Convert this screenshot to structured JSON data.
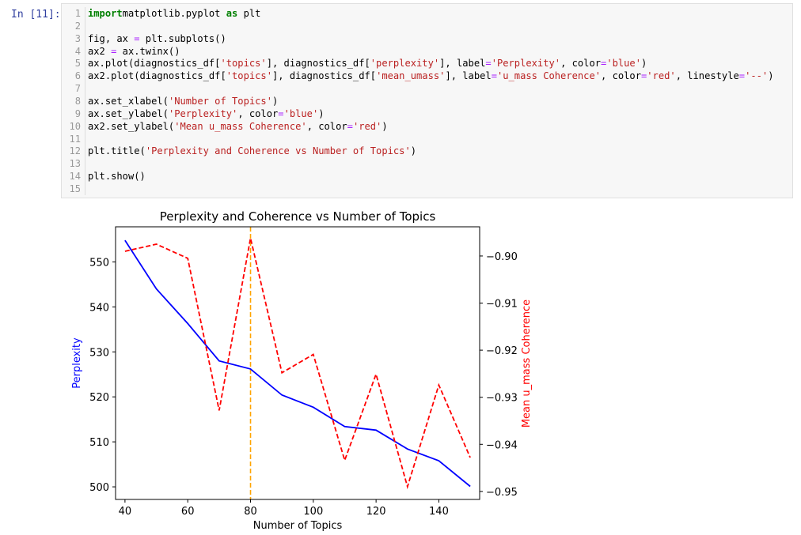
{
  "cell": {
    "prompt": "In [11]:",
    "lines": [
      {
        "n": "1",
        "t": [
          [
            "kw",
            "import"
          ],
          [
            "",
            "matplotlib.pyplot "
          ],
          [
            "kw",
            "as"
          ],
          [
            "",
            " plt"
          ]
        ]
      },
      {
        "n": "2",
        "t": []
      },
      {
        "n": "3",
        "t": [
          [
            "",
            "fig, ax "
          ],
          [
            "op",
            "="
          ],
          [
            "",
            " plt.subplots()"
          ]
        ]
      },
      {
        "n": "4",
        "t": [
          [
            "",
            "ax2 "
          ],
          [
            "op",
            "="
          ],
          [
            "",
            " ax.twinx()"
          ]
        ]
      },
      {
        "n": "5",
        "t": [
          [
            "",
            "ax.plot(diagnostics_df["
          ],
          [
            "str",
            "'topics'"
          ],
          [
            "",
            "], diagnostics_df["
          ],
          [
            "str",
            "'perplexity'"
          ],
          [
            "",
            "], label"
          ],
          [
            "op",
            "="
          ],
          [
            "str",
            "'Perplexity'"
          ],
          [
            "",
            ", color"
          ],
          [
            "op",
            "="
          ],
          [
            "str",
            "'blue'"
          ],
          [
            "",
            ")"
          ]
        ]
      },
      {
        "n": "6",
        "t": [
          [
            "",
            "ax2.plot(diagnostics_df["
          ],
          [
            "str",
            "'topics'"
          ],
          [
            "",
            "], diagnostics_df["
          ],
          [
            "str",
            "'mean_umass'"
          ],
          [
            "",
            "], label"
          ],
          [
            "op",
            "="
          ],
          [
            "str",
            "'u_mass Coherence'"
          ],
          [
            "",
            ", color"
          ],
          [
            "op",
            "="
          ],
          [
            "str",
            "'red'"
          ],
          [
            "",
            ", linestyle"
          ],
          [
            "op",
            "="
          ],
          [
            "str",
            "'--'"
          ],
          [
            "",
            ")"
          ]
        ]
      },
      {
        "n": "7",
        "t": []
      },
      {
        "n": "8",
        "t": [
          [
            "",
            "ax.set_xlabel("
          ],
          [
            "str",
            "'Number of Topics'"
          ],
          [
            "",
            ")"
          ]
        ]
      },
      {
        "n": "9",
        "t": [
          [
            "",
            "ax.set_ylabel("
          ],
          [
            "str",
            "'Perplexity'"
          ],
          [
            "",
            ", color"
          ],
          [
            "op",
            "="
          ],
          [
            "str",
            "'blue'"
          ],
          [
            "",
            ")"
          ]
        ]
      },
      {
        "n": "10",
        "t": [
          [
            "",
            "ax2.set_ylabel("
          ],
          [
            "str",
            "'Mean u_mass Coherence'"
          ],
          [
            "",
            ", color"
          ],
          [
            "op",
            "="
          ],
          [
            "str",
            "'red'"
          ],
          [
            "",
            ")"
          ]
        ]
      },
      {
        "n": "11",
        "t": []
      },
      {
        "n": "12",
        "t": [
          [
            "",
            "plt.title("
          ],
          [
            "str",
            "'Perplexity and Coherence vs Number of Topics'"
          ],
          [
            "",
            ")"
          ]
        ]
      },
      {
        "n": "13",
        "t": []
      },
      {
        "n": "14",
        "t": [
          [
            "",
            "plt.show()"
          ]
        ]
      },
      {
        "n": "15",
        "t": []
      }
    ]
  },
  "chart_data": {
    "type": "line",
    "title": "Perplexity and Coherence vs Number of Topics",
    "xlabel": "Number of Topics",
    "ylabel": "Perplexity",
    "y2label": "Mean u_mass Coherence",
    "xlim": [
      37,
      153
    ],
    "ylim": [
      497.2,
      557.8
    ],
    "y2lim": [
      -0.9517,
      -0.8938
    ],
    "xticks": [
      "40",
      "60",
      "80",
      "100",
      "120",
      "140"
    ],
    "yticks": [
      "500",
      "510",
      "520",
      "530",
      "540",
      "550"
    ],
    "y2ticks": [
      "−0.90",
      "−0.91",
      "−0.92",
      "−0.93",
      "−0.94",
      "−0.95"
    ],
    "x": [
      40,
      50,
      60,
      70,
      80,
      90,
      100,
      110,
      120,
      130,
      140,
      150
    ],
    "series": [
      {
        "axis": "left",
        "color": "#0000ff",
        "dash": false,
        "values": [
          554.8,
          544.0,
          536.3,
          528.0,
          526.2,
          520.4,
          517.7,
          513.4,
          512.6,
          508.4,
          505.8,
          500.1
        ]
      },
      {
        "axis": "right",
        "color": "#ff0000",
        "dash": true,
        "values": [
          -0.899,
          -0.8975,
          -0.9005,
          -0.9328,
          -0.8962,
          -0.9248,
          -0.9209,
          -0.9434,
          -0.9251,
          -0.949,
          -0.9274,
          -0.9428
        ]
      }
    ],
    "vline": {
      "x": 80,
      "color": "#ffa500"
    },
    "grid": false
  }
}
